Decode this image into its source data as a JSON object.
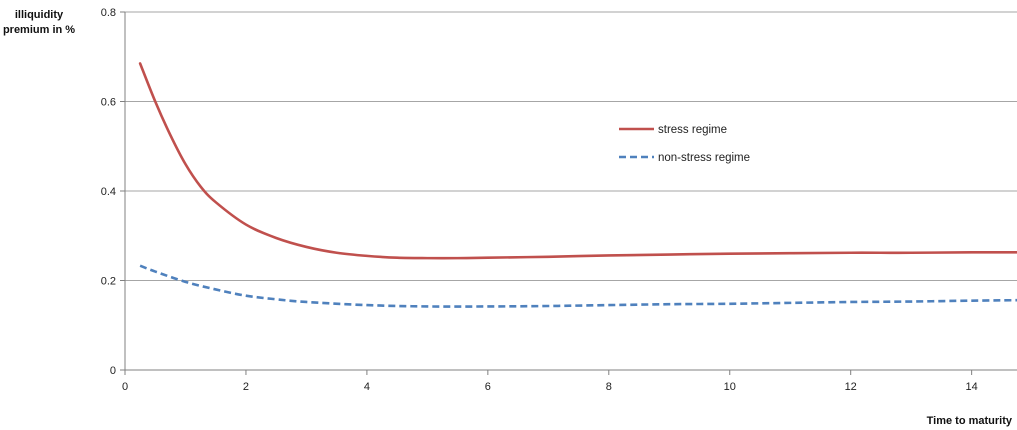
{
  "chart_data": {
    "type": "line",
    "ylabel_lines": [
      "illiquidity",
      "premium in %"
    ],
    "xlabel": "Time to maturity",
    "xlim": [
      0,
      14.75
    ],
    "ylim": [
      0,
      0.8
    ],
    "x_ticks": [
      0,
      2,
      4,
      6,
      8,
      10,
      12,
      14
    ],
    "y_ticks": [
      0,
      0.2,
      0.4,
      0.6,
      0.8
    ],
    "y_tick_labels": [
      "0",
      "0.2",
      "0.4",
      "0.6",
      "0.8"
    ],
    "grid": "horizontal",
    "legend_position": "right-inside",
    "series": [
      {
        "name": "stress regime",
        "color": "#c0504d",
        "dash": "solid",
        "x": [
          0.25,
          0.5,
          0.75,
          1,
          1.25,
          1.5,
          2,
          2.5,
          3,
          3.5,
          4,
          4.5,
          5,
          5.5,
          6,
          7,
          8,
          9,
          10,
          11,
          12,
          13,
          14,
          14.75
        ],
        "y": [
          0.685,
          0.6,
          0.525,
          0.46,
          0.41,
          0.375,
          0.325,
          0.295,
          0.275,
          0.262,
          0.255,
          0.251,
          0.25,
          0.25,
          0.251,
          0.253,
          0.256,
          0.258,
          0.26,
          0.261,
          0.262,
          0.262,
          0.263,
          0.263
        ]
      },
      {
        "name": "non-stress regime",
        "color": "#4f81bd",
        "dash": "dashed",
        "x": [
          0.25,
          0.5,
          1,
          1.5,
          2,
          2.5,
          3,
          4,
          5,
          6,
          7,
          8,
          9,
          10,
          11,
          12,
          13,
          14,
          14.75
        ],
        "y": [
          0.233,
          0.22,
          0.197,
          0.18,
          0.166,
          0.158,
          0.152,
          0.145,
          0.142,
          0.142,
          0.143,
          0.145,
          0.147,
          0.148,
          0.15,
          0.152,
          0.153,
          0.155,
          0.156
        ]
      }
    ]
  }
}
